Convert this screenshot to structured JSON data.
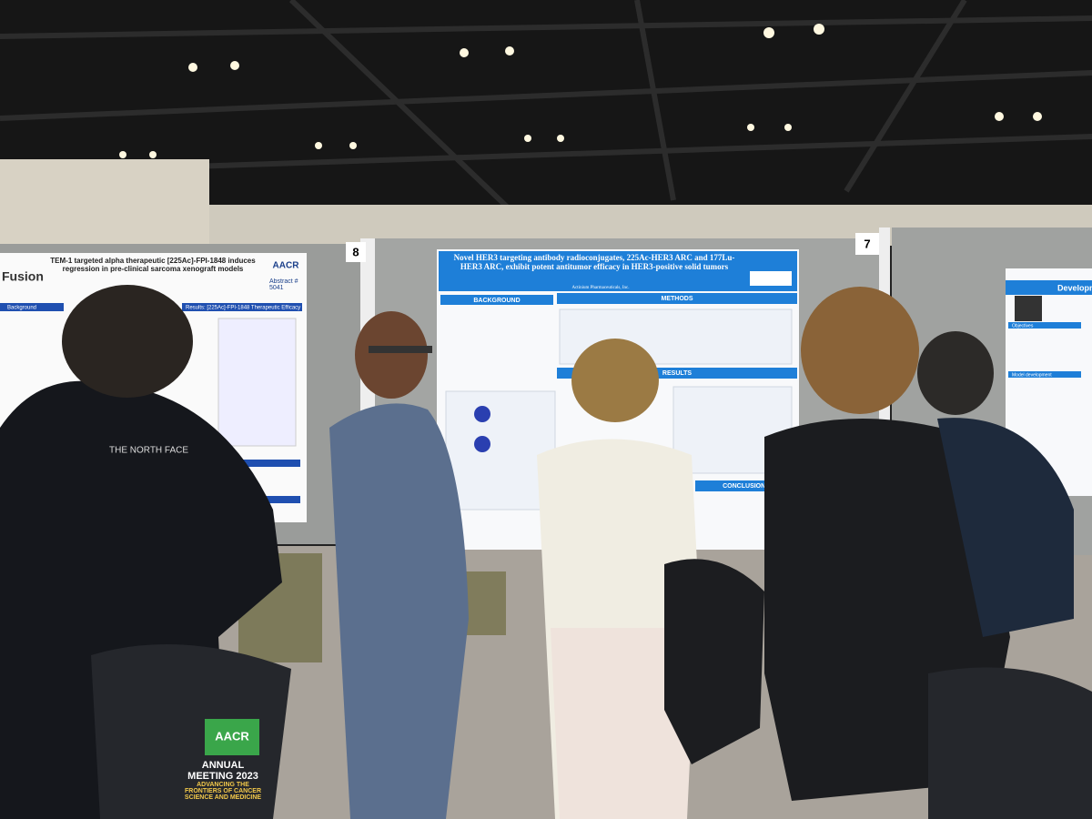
{
  "booths": {
    "left": "8",
    "right": "7"
  },
  "posters": [
    {
      "logo": "Fusion",
      "title": "TEM-1 targeted alpha therapeutic [225Ac]-FPI-1848 induces regression in pre-clinical sarcoma xenograft models",
      "org": "AACR",
      "abstract": "Abstract # 5041",
      "sections": [
        "Background",
        "Results: [225Ac]-FPI-1848 Therapeutic Efficacy"
      ]
    },
    {
      "title": "Novel HER3 targeting antibody radioconjugates, 225Ac-HER3 ARC and 177Lu-HER3 ARC, exhibit potent antitumor efficacy in HER3-positive solid tumors",
      "company": "Actinium Pharmaceuticals, Inc.",
      "sections": [
        "BACKGROUND",
        "METHODS",
        "RESULTS",
        "CONCLUSIONS"
      ]
    },
    {
      "title": "Developm",
      "sections": [
        "Objectives",
        "Model development"
      ]
    }
  ],
  "apparel": {
    "jacket": "THE NORTH FACE",
    "bag_logo": "AACR",
    "bag_event": "ANNUAL MEETING 2023",
    "bag_slogan": "ADVANCING THE FRONTIERS OF CANCER SCIENCE AND MEDICINE"
  }
}
